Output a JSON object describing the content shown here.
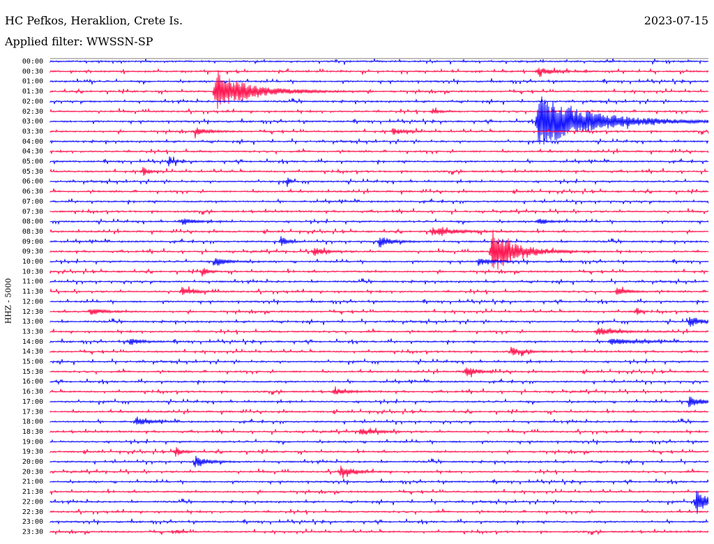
{
  "header": {
    "station": "HC Pefkos, Heraklion, Crete Is.",
    "date": "2023-07-15",
    "filter": "Applied filter: WWSSN-SP",
    "channel": "HHZ - 5000"
  },
  "colors": {
    "odd_trace": "#0000ff",
    "even_trace": "#ff0040"
  },
  "chart_data": {
    "type": "line",
    "title": "HC Pefkos, Heraklion, Crete Is.",
    "ylabel": "HHZ - 5000",
    "tick_labels": [
      "00:00",
      "00:30",
      "01:00",
      "01:30",
      "02:00",
      "02:30",
      "03:00",
      "03:30",
      "04:00",
      "04:30",
      "05:00",
      "05:30",
      "06:00",
      "06:30",
      "07:00",
      "07:30",
      "08:00",
      "08:30",
      "09:00",
      "09:30",
      "10:00",
      "10:30",
      "11:00",
      "11:30",
      "12:00",
      "12:30",
      "13:00",
      "13:30",
      "14:00",
      "14:30",
      "15:00",
      "15:30",
      "16:00",
      "16:30",
      "17:00",
      "17:30",
      "18:00",
      "18:30",
      "19:00",
      "19:30",
      "20:00",
      "20:30",
      "21:00",
      "21:30",
      "22:00",
      "22:30",
      "23:00",
      "23:30"
    ],
    "trace_colors": [
      "#0000ff",
      "#ff0040"
    ],
    "events": [
      {
        "row": 1,
        "x": 0.74,
        "amp": 5,
        "dur": 0.03
      },
      {
        "row": 3,
        "x": 0.25,
        "amp": 28,
        "dur": 0.06
      },
      {
        "row": 5,
        "x": 0.58,
        "amp": 5,
        "dur": 0.01
      },
      {
        "row": 6,
        "x": 0.74,
        "amp": 40,
        "dur": 0.09
      },
      {
        "row": 7,
        "x": 0.22,
        "amp": 6,
        "dur": 0.02
      },
      {
        "row": 7,
        "x": 0.52,
        "amp": 5,
        "dur": 0.02
      },
      {
        "row": 10,
        "x": 0.18,
        "amp": 8,
        "dur": 0.01
      },
      {
        "row": 11,
        "x": 0.14,
        "amp": 8,
        "dur": 0.01
      },
      {
        "row": 12,
        "x": 0.36,
        "amp": 8,
        "dur": 0.005
      },
      {
        "row": 16,
        "x": 0.2,
        "amp": 5,
        "dur": 0.02
      },
      {
        "row": 16,
        "x": 0.74,
        "amp": 5,
        "dur": 0.02
      },
      {
        "row": 17,
        "x": 0.58,
        "amp": 6,
        "dur": 0.04
      },
      {
        "row": 18,
        "x": 0.35,
        "amp": 10,
        "dur": 0.01
      },
      {
        "row": 18,
        "x": 0.5,
        "amp": 8,
        "dur": 0.02
      },
      {
        "row": 19,
        "x": 0.67,
        "amp": 35,
        "dur": 0.04
      },
      {
        "row": 19,
        "x": 0.4,
        "amp": 7,
        "dur": 0.02
      },
      {
        "row": 20,
        "x": 0.25,
        "amp": 7,
        "dur": 0.02
      },
      {
        "row": 20,
        "x": 0.65,
        "amp": 6,
        "dur": 0.02
      },
      {
        "row": 21,
        "x": 0.23,
        "amp": 7,
        "dur": 0.01
      },
      {
        "row": 23,
        "x": 0.2,
        "amp": 6,
        "dur": 0.02
      },
      {
        "row": 23,
        "x": 0.86,
        "amp": 5,
        "dur": 0.02
      },
      {
        "row": 25,
        "x": 0.06,
        "amp": 6,
        "dur": 0.02
      },
      {
        "row": 25,
        "x": 0.89,
        "amp": 9,
        "dur": 0.005
      },
      {
        "row": 26,
        "x": 0.97,
        "amp": 8,
        "dur": 0.02
      },
      {
        "row": 27,
        "x": 0.83,
        "amp": 6,
        "dur": 0.03
      },
      {
        "row": 28,
        "x": 0.12,
        "amp": 5,
        "dur": 0.02
      },
      {
        "row": 28,
        "x": 0.85,
        "amp": 5,
        "dur": 0.04
      },
      {
        "row": 29,
        "x": 0.7,
        "amp": 6,
        "dur": 0.02
      },
      {
        "row": 31,
        "x": 0.63,
        "amp": 7,
        "dur": 0.02
      },
      {
        "row": 33,
        "x": 0.43,
        "amp": 5,
        "dur": 0.02
      },
      {
        "row": 34,
        "x": 0.97,
        "amp": 9,
        "dur": 0.02
      },
      {
        "row": 36,
        "x": 0.13,
        "amp": 6,
        "dur": 0.02
      },
      {
        "row": 37,
        "x": 0.47,
        "amp": 5,
        "dur": 0.03
      },
      {
        "row": 39,
        "x": 0.19,
        "amp": 8,
        "dur": 0.01
      },
      {
        "row": 40,
        "x": 0.22,
        "amp": 8,
        "dur": 0.02
      },
      {
        "row": 41,
        "x": 0.44,
        "amp": 10,
        "dur": 0.02
      },
      {
        "row": 44,
        "x": 0.98,
        "amp": 20,
        "dur": 0.02
      },
      {
        "row": 47,
        "x": 0.19,
        "amp": 3,
        "dur": 0.01
      }
    ]
  }
}
